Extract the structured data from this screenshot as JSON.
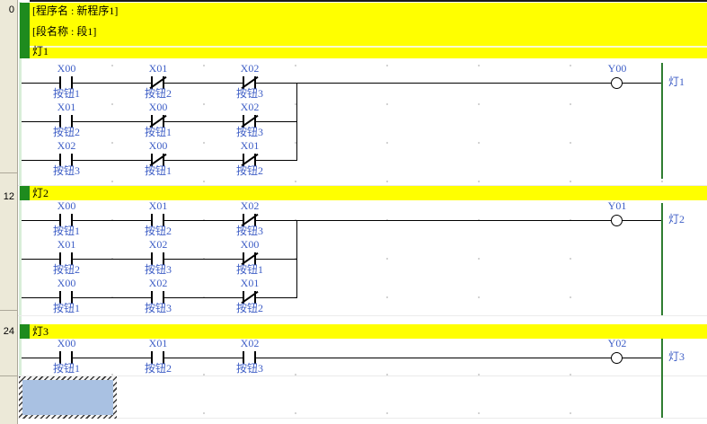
{
  "margin_numbers": [
    "0",
    "12",
    "24"
  ],
  "header": {
    "program_line": "[程序名 : 新程序1]",
    "section_line": "[段名称 : 段1]"
  },
  "colors": {
    "banner_yellow": "#ffff00",
    "banner_green_bar": "#1e8b1e",
    "device_text_blue": "#3e5ec6",
    "left_rail_pale_green": "#d8eed8",
    "right_rail_green": "#2f7d31",
    "selection_fill_blue": "#a9c1e2",
    "margin_beige": "#ece9d8"
  },
  "blocks": [
    {
      "title": "灯1",
      "rows": [
        {
          "contacts": [
            {
              "name": "X00",
              "comment": "按钮1",
              "type": "no"
            },
            {
              "name": "X01",
              "comment": "按钮2",
              "type": "nc"
            },
            {
              "name": "X02",
              "comment": "按钮3",
              "type": "nc"
            }
          ]
        },
        {
          "contacts": [
            {
              "name": "X01",
              "comment": "按钮2",
              "type": "no"
            },
            {
              "name": "X00",
              "comment": "按钮1",
              "type": "nc"
            },
            {
              "name": "X02",
              "comment": "按钮3",
              "type": "nc"
            }
          ]
        },
        {
          "contacts": [
            {
              "name": "X02",
              "comment": "按钮3",
              "type": "no"
            },
            {
              "name": "X00",
              "comment": "按钮1",
              "type": "nc"
            },
            {
              "name": "X01",
              "comment": "按钮2",
              "type": "nc"
            }
          ]
        }
      ],
      "output": {
        "name": "Y00",
        "comment": "灯1"
      }
    },
    {
      "title": "灯2",
      "rows": [
        {
          "contacts": [
            {
              "name": "X00",
              "comment": "按钮1",
              "type": "no"
            },
            {
              "name": "X01",
              "comment": "按钮2",
              "type": "no"
            },
            {
              "name": "X02",
              "comment": "按钮3",
              "type": "nc"
            }
          ]
        },
        {
          "contacts": [
            {
              "name": "X01",
              "comment": "按钮2",
              "type": "no"
            },
            {
              "name": "X02",
              "comment": "按钮3",
              "type": "no"
            },
            {
              "name": "X00",
              "comment": "按钮1",
              "type": "nc"
            }
          ]
        },
        {
          "contacts": [
            {
              "name": "X00",
              "comment": "按钮1",
              "type": "no"
            },
            {
              "name": "X02",
              "comment": "按钮3",
              "type": "no"
            },
            {
              "name": "X01",
              "comment": "按钮2",
              "type": "nc"
            }
          ]
        }
      ],
      "output": {
        "name": "Y01",
        "comment": "灯2"
      }
    },
    {
      "title": "灯3",
      "rows": [
        {
          "contacts": [
            {
              "name": "X00",
              "comment": "按钮1",
              "type": "no"
            },
            {
              "name": "X01",
              "comment": "按钮2",
              "type": "no"
            },
            {
              "name": "X02",
              "comment": "按钮3",
              "type": "no"
            }
          ]
        }
      ],
      "output": {
        "name": "Y02",
        "comment": "灯3"
      }
    }
  ]
}
